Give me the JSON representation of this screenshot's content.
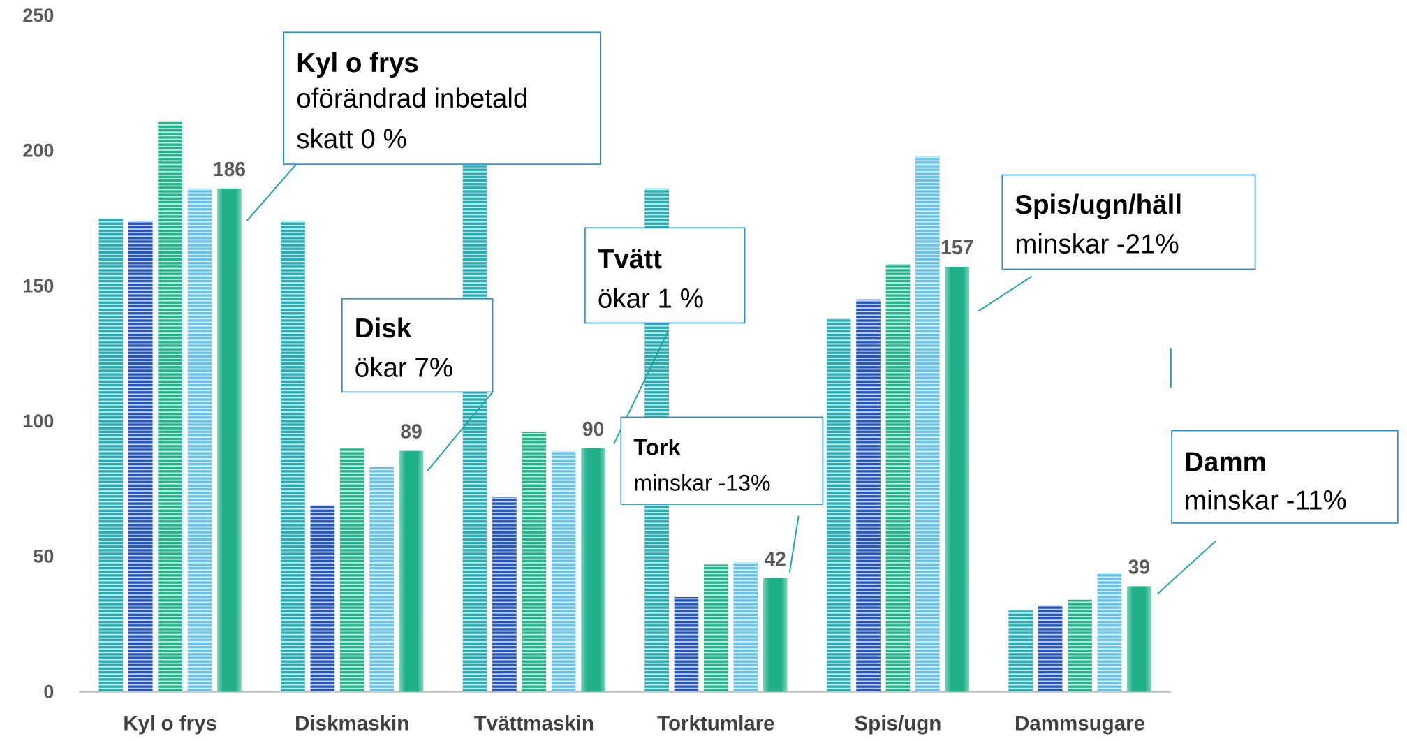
{
  "chart_data": {
    "type": "bar",
    "categories": [
      "Kyl o frys",
      "Diskmaskin",
      "Tvättmaskin",
      "Torktumlare",
      "Spis/ugn",
      "Dammsugare"
    ],
    "series": [
      {
        "color": "#26adb4",
        "striped": true,
        "values": [
          175,
          174,
          211,
          186,
          138,
          30
        ]
      },
      {
        "color": "#2255c2",
        "striped": true,
        "values": [
          174,
          69,
          72,
          35,
          145,
          32
        ]
      },
      {
        "color": "#1fb48a",
        "striped": true,
        "values": [
          211,
          90,
          96,
          47,
          158,
          34
        ]
      },
      {
        "color": "#66c2ea",
        "striped": true,
        "values": [
          186,
          83,
          89,
          48,
          198,
          44
        ]
      },
      {
        "color": "#1fb08a",
        "striped": false,
        "data_labels": true,
        "values": [
          186,
          89,
          90,
          42,
          157,
          39
        ]
      }
    ],
    "ylim": [
      0,
      250
    ],
    "yticks": [
      0,
      50,
      100,
      150,
      200,
      250
    ],
    "grid": false,
    "annotations": [
      {
        "title": "Kyl o frys",
        "text": [
          "oförändrad inbetald",
          "skatt 0 %"
        ]
      },
      {
        "title": "Disk",
        "text": [
          "ökar 7%"
        ]
      },
      {
        "title": "Tvätt",
        "text": [
          "ökar 1 %"
        ]
      },
      {
        "title": "Tork",
        "text": [
          "minskar -13%"
        ]
      },
      {
        "title": "Spis/ugn/häll",
        "text": [
          "minskar -21%"
        ]
      },
      {
        "title": "Damm",
        "text": [
          "minskar -11%"
        ]
      }
    ]
  }
}
